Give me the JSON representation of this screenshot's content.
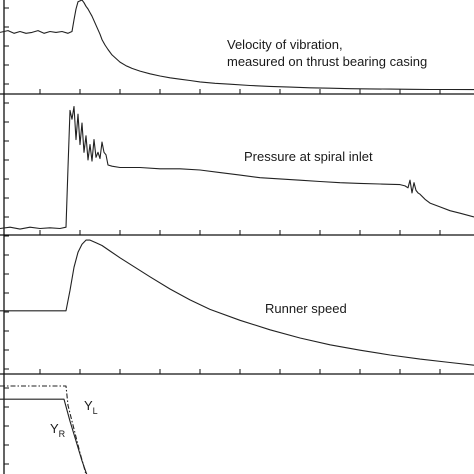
{
  "chart_data": [
    {
      "type": "line",
      "panel": "vibration",
      "annotation": [
        "Velocity of vibration,",
        "measured on thrust bearing casing"
      ],
      "series": [
        {
          "x": [
            0,
            8,
            14,
            20,
            26,
            32,
            38,
            44,
            50,
            56,
            62,
            68,
            72,
            74,
            76,
            78,
            80,
            82,
            84,
            86,
            88,
            90,
            92,
            94,
            96,
            98,
            100,
            102,
            105,
            108,
            112,
            116,
            120,
            126,
            132,
            140,
            150,
            160,
            170,
            180,
            190,
            200,
            215,
            230,
            250,
            270,
            290,
            310,
            330,
            350,
            370,
            390,
            410,
            430,
            450,
            474
          ],
          "y": [
            0.64,
            0.66,
            0.63,
            0.65,
            0.63,
            0.64,
            0.66,
            0.63,
            0.65,
            0.64,
            0.65,
            0.63,
            0.65,
            0.78,
            0.9,
            0.98,
            0.99,
            1.0,
            0.97,
            0.93,
            0.9,
            0.86,
            0.82,
            0.77,
            0.72,
            0.67,
            0.62,
            0.56,
            0.5,
            0.45,
            0.39,
            0.35,
            0.31,
            0.27,
            0.24,
            0.21,
            0.18,
            0.155,
            0.135,
            0.12,
            0.105,
            0.09,
            0.075,
            0.065,
            0.05,
            0.04,
            0.032,
            0.025,
            0.02,
            0.015,
            0.012,
            0.01,
            0.008,
            0.006,
            0.005,
            0.004
          ]
        }
      ]
    },
    {
      "type": "line",
      "panel": "pressure",
      "annotation": [
        "Pressure at spiral inlet"
      ],
      "series": [
        {
          "x": [
            0,
            10,
            20,
            30,
            40,
            50,
            60,
            66,
            68,
            70,
            72,
            74,
            76,
            78,
            80,
            82,
            84,
            86,
            88,
            90,
            92,
            94,
            96,
            98,
            100,
            102,
            104,
            106,
            108,
            112,
            120,
            140,
            160,
            180,
            200,
            220,
            240,
            260,
            280,
            300,
            320,
            340,
            360,
            380,
            400,
            405,
            408,
            410,
            412,
            414,
            416,
            418,
            420,
            425,
            430,
            440,
            450,
            460,
            474
          ],
          "y": [
            0.02,
            0.03,
            0.015,
            0.03,
            0.02,
            0.025,
            0.02,
            0.03,
            0.5,
            0.95,
            0.88,
            0.98,
            0.72,
            0.92,
            0.68,
            0.85,
            0.62,
            0.75,
            0.56,
            0.68,
            0.55,
            0.72,
            0.58,
            0.62,
            0.57,
            0.7,
            0.62,
            0.6,
            0.52,
            0.51,
            0.5,
            0.5,
            0.49,
            0.49,
            0.48,
            0.46,
            0.44,
            0.42,
            0.41,
            0.4,
            0.39,
            0.38,
            0.375,
            0.37,
            0.365,
            0.355,
            0.34,
            0.4,
            0.3,
            0.38,
            0.32,
            0.3,
            0.29,
            0.25,
            0.22,
            0.19,
            0.16,
            0.14,
            0.11
          ]
        }
      ]
    },
    {
      "type": "line",
      "panel": "runner-speed",
      "annotation": [
        "Runner speed"
      ],
      "series": [
        {
          "x": [
            0,
            20,
            40,
            60,
            66,
            70,
            74,
            78,
            82,
            86,
            90,
            96,
            102,
            110,
            120,
            135,
            150,
            170,
            190,
            210,
            240,
            270,
            300,
            330,
            360,
            390,
            420,
            450,
            474
          ],
          "y": [
            0.45,
            0.45,
            0.45,
            0.45,
            0.45,
            0.6,
            0.77,
            0.88,
            0.94,
            0.97,
            0.97,
            0.95,
            0.93,
            0.89,
            0.84,
            0.77,
            0.7,
            0.61,
            0.53,
            0.46,
            0.38,
            0.31,
            0.25,
            0.2,
            0.16,
            0.125,
            0.095,
            0.07,
            0.05
          ]
        }
      ]
    },
    {
      "type": "line",
      "panel": "wicket-gate-servomotors",
      "series": [
        {
          "name": "Y_R",
          "x": [
            0,
            20,
            40,
            60,
            64,
            70,
            74,
            78,
            82,
            86,
            90
          ],
          "y": [
            0.85,
            0.85,
            0.85,
            0.85,
            0.85,
            0.6,
            0.45,
            0.3,
            0.15,
            0.02,
            -0.1
          ]
        },
        {
          "name": "Y_L",
          "x": [
            0,
            20,
            40,
            60,
            66,
            68,
            72,
            76,
            80,
            84,
            88
          ],
          "y": [
            1.0,
            1.0,
            1.0,
            1.0,
            1.0,
            0.78,
            0.6,
            0.42,
            0.24,
            0.08,
            -0.1
          ]
        }
      ]
    }
  ],
  "labels": {
    "vibration_line1": "Velocity of vibration,",
    "vibration_line2": "measured on thrust bearing casing",
    "pressure": "Pressure at spiral inlet",
    "runner": "Runner speed",
    "yl_main": "Y",
    "yl_sub": "L",
    "yr_main": "Y",
    "yr_sub": "R"
  }
}
